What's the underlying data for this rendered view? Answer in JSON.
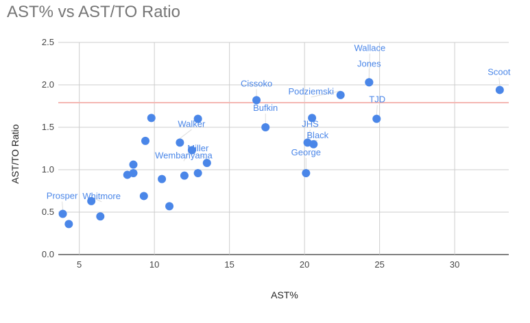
{
  "chart_data": {
    "type": "scatter",
    "title": "AST% vs AST/TO Ratio",
    "xlabel": "AST%",
    "ylabel": "AST/TO Ratio",
    "xlim": [
      3.6,
      33.6
    ],
    "ylim": [
      0,
      2.5
    ],
    "x_ticks": [
      5,
      10,
      15,
      20,
      25,
      30
    ],
    "y_ticks": [
      "0.0",
      "0.5",
      "1.0",
      "1.5",
      "2.0",
      "2.5"
    ],
    "grid": true,
    "legend": "none",
    "point_color": "#4a86e8",
    "reference_line": {
      "y": 1.79,
      "color": "#f4b6b1"
    },
    "points": [
      {
        "x": 3.9,
        "y": 0.48,
        "label": "Prosper"
      },
      {
        "x": 4.3,
        "y": 0.36,
        "label": ""
      },
      {
        "x": 5.8,
        "y": 0.63,
        "label": "Whitmore"
      },
      {
        "x": 6.4,
        "y": 0.45,
        "label": ""
      },
      {
        "x": 8.2,
        "y": 0.94,
        "label": ""
      },
      {
        "x": 8.6,
        "y": 0.96,
        "label": ""
      },
      {
        "x": 8.6,
        "y": 1.06,
        "label": ""
      },
      {
        "x": 9.3,
        "y": 0.69,
        "label": ""
      },
      {
        "x": 9.4,
        "y": 1.34,
        "label": ""
      },
      {
        "x": 9.8,
        "y": 1.61,
        "label": ""
      },
      {
        "x": 10.5,
        "y": 0.89,
        "label": ""
      },
      {
        "x": 11.0,
        "y": 0.57,
        "label": ""
      },
      {
        "x": 11.7,
        "y": 1.32,
        "label": "Walker"
      },
      {
        "x": 12.0,
        "y": 0.93,
        "label": ""
      },
      {
        "x": 12.5,
        "y": 1.23,
        "label": "Wembanyama"
      },
      {
        "x": 12.9,
        "y": 1.6,
        "label": ""
      },
      {
        "x": 12.9,
        "y": 0.96,
        "label": ""
      },
      {
        "x": 13.5,
        "y": 1.08,
        "label": "Miller"
      },
      {
        "x": 16.8,
        "y": 1.82,
        "label": "Cissoko"
      },
      {
        "x": 17.4,
        "y": 1.5,
        "label": "Bufkin"
      },
      {
        "x": 20.1,
        "y": 0.96,
        "label": "George"
      },
      {
        "x": 20.2,
        "y": 1.32,
        "label": "JHS"
      },
      {
        "x": 20.5,
        "y": 1.61,
        "label": ""
      },
      {
        "x": 20.6,
        "y": 1.3,
        "label": "Black"
      },
      {
        "x": 22.4,
        "y": 1.88,
        "label": "Podziemski"
      },
      {
        "x": 24.3,
        "y": 2.03,
        "label": "Jones"
      },
      {
        "x": 24.3,
        "y": 2.03,
        "label": "Wallace"
      },
      {
        "x": 24.8,
        "y": 1.6,
        "label": "TJD"
      },
      {
        "x": 33.0,
        "y": 1.94,
        "label": "Scoot"
      }
    ]
  }
}
